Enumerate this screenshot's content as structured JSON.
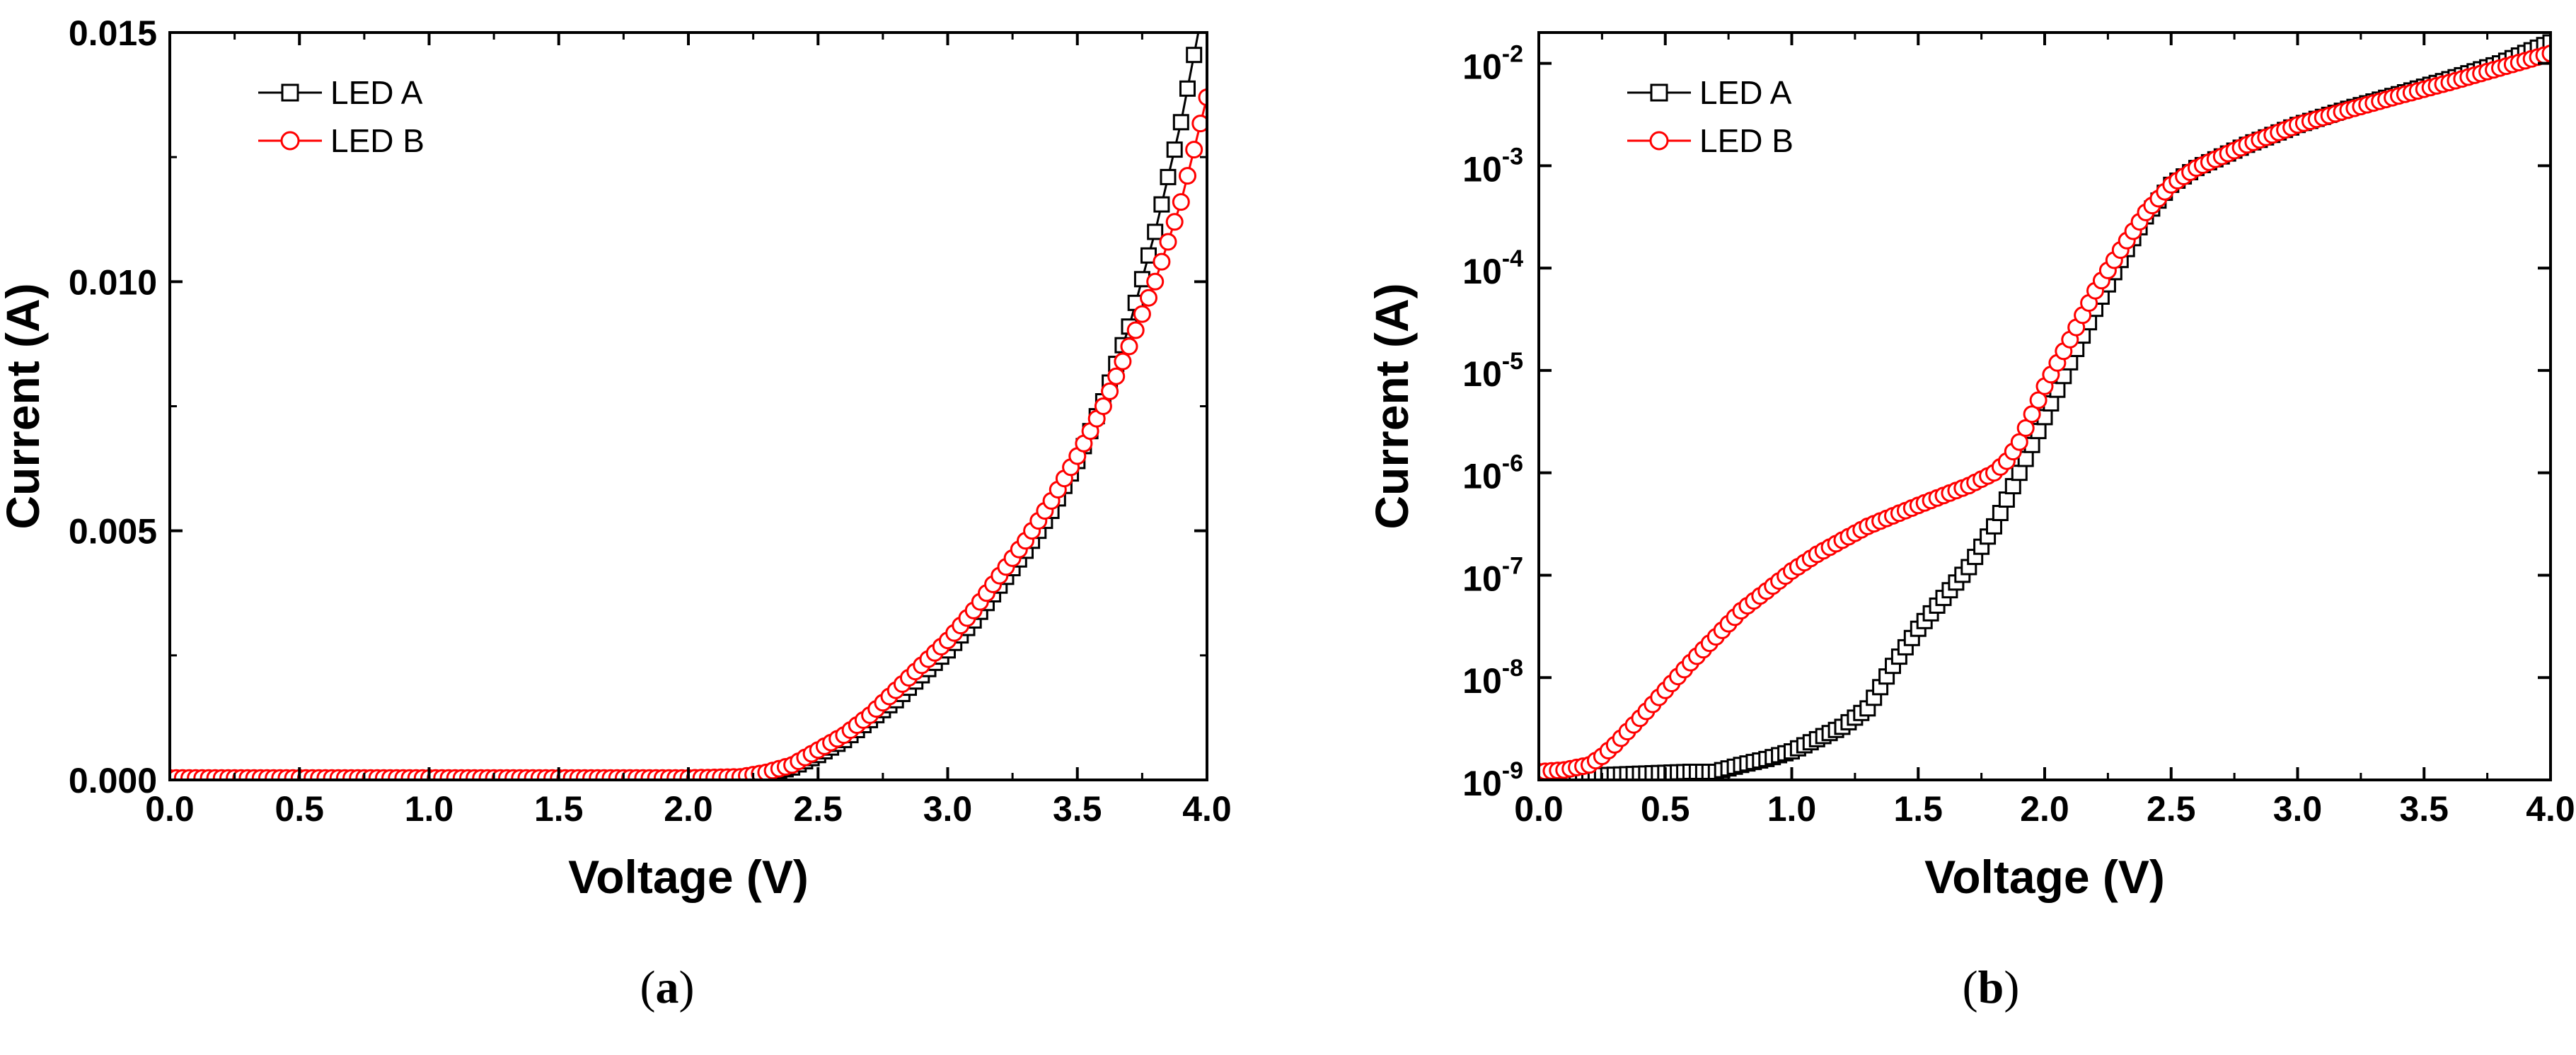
{
  "chart_data": [
    {
      "panel": "a",
      "type": "scatter",
      "xlabel": "Voltage (V)",
      "ylabel": "Current (A)",
      "xlim": [
        0,
        4
      ],
      "ylim": [
        0,
        0.015
      ],
      "yscale": "linear",
      "x_ticks": [
        "0.0",
        "0.5",
        "1.0",
        "1.5",
        "2.0",
        "2.5",
        "3.0",
        "3.5",
        "4.0"
      ],
      "y_ticks": [
        "0.000",
        "0.005",
        "0.010",
        "0.015"
      ],
      "legend_position": "top-left",
      "grid": false,
      "series": [
        {
          "name": "LED A",
          "marker": "square",
          "color": "#000000",
          "x": [
            0,
            0.5,
            1.0,
            1.5,
            2.0,
            2.2,
            2.3,
            2.4,
            2.5,
            2.6,
            2.7,
            2.8,
            2.9,
            3.0,
            3.1,
            3.2,
            3.3,
            3.4,
            3.5,
            3.6,
            3.7,
            3.8,
            3.9,
            4.0
          ],
          "y": [
            4e-05,
            4e-05,
            4e-05,
            4e-05,
            4e-05,
            5e-05,
            0.0001,
            0.00025,
            0.0005,
            0.0008,
            0.0012,
            0.0016,
            0.0021,
            0.0026,
            0.0032,
            0.0039,
            0.0046,
            0.0054,
            0.0064,
            0.0076,
            0.0091,
            0.011,
            0.0132,
            0.0159
          ]
        },
        {
          "name": "LED B",
          "marker": "circle",
          "color": "#ff0000",
          "x": [
            0,
            0.5,
            1.0,
            1.5,
            2.0,
            2.2,
            2.3,
            2.4,
            2.5,
            2.6,
            2.7,
            2.8,
            2.9,
            3.0,
            3.1,
            3.2,
            3.3,
            3.4,
            3.5,
            3.6,
            3.7,
            3.8,
            3.9,
            4.0
          ],
          "y": [
            4e-05,
            4e-05,
            4e-05,
            4e-05,
            4e-05,
            6e-05,
            0.00015,
            0.0003,
            0.0006,
            0.0009,
            0.0013,
            0.0018,
            0.0023,
            0.0028,
            0.0034,
            0.0041,
            0.0048,
            0.0056,
            0.0065,
            0.0075,
            0.0087,
            0.01,
            0.0116,
            0.0137
          ]
        }
      ]
    },
    {
      "panel": "b",
      "type": "scatter",
      "xlabel": "Voltage (V)",
      "ylabel": "Current (A)",
      "xlim": [
        0,
        4
      ],
      "ylim": [
        1e-09,
        0.02
      ],
      "yscale": "log",
      "x_ticks": [
        "0.0",
        "0.5",
        "1.0",
        "1.5",
        "2.0",
        "2.5",
        "3.0",
        "3.5",
        "4.0"
      ],
      "y_ticks": [
        {
          "base": "10",
          "exp": "-9"
        },
        {
          "base": "10",
          "exp": "-8"
        },
        {
          "base": "10",
          "exp": "-7"
        },
        {
          "base": "10",
          "exp": "-6"
        },
        {
          "base": "10",
          "exp": "-5"
        },
        {
          "base": "10",
          "exp": "-4"
        },
        {
          "base": "10",
          "exp": "-3"
        },
        {
          "base": "10",
          "exp": "-2"
        }
      ],
      "legend_position": "top-left",
      "grid": false,
      "series": [
        {
          "name": "LED A",
          "marker": "square",
          "color": "#000000",
          "x": [
            0,
            0.2,
            0.4,
            0.6,
            0.7,
            0.8,
            0.9,
            1.0,
            1.1,
            1.2,
            1.3,
            1.4,
            1.5,
            1.6,
            1.7,
            1.8,
            1.9,
            2.0,
            2.1,
            2.2,
            2.3,
            2.4,
            2.5,
            2.6,
            2.8,
            3.0,
            3.2,
            3.4,
            3.6,
            3.8,
            4.0
          ],
          "y": [
            1.1e-09,
            1.1e-09,
            1.15e-09,
            1.2e-09,
            1.2e-09,
            1.4e-09,
            1.6e-09,
            1.9e-09,
            2.5e-09,
            3.3e-09,
            5e-09,
            1.3e-08,
            3e-08,
            6e-08,
            1.2e-07,
            3e-07,
            1e-06,
            3.5e-06,
            1.2e-05,
            4e-05,
            0.00012,
            0.00032,
            0.00065,
            0.00095,
            0.0016,
            0.0025,
            0.0036,
            0.005,
            0.007,
            0.01,
            0.016
          ]
        },
        {
          "name": "LED B",
          "marker": "circle",
          "color": "#ff0000",
          "x": [
            0,
            0.1,
            0.2,
            0.25,
            0.3,
            0.4,
            0.5,
            0.6,
            0.7,
            0.8,
            0.9,
            1.0,
            1.1,
            1.2,
            1.3,
            1.4,
            1.5,
            1.6,
            1.7,
            1.8,
            1.85,
            1.9,
            2.0,
            2.1,
            2.2,
            2.3,
            2.4,
            2.5,
            2.6,
            2.8,
            3.0,
            3.2,
            3.4,
            3.6,
            3.8,
            4.0
          ],
          "y": [
            1.2e-09,
            1.25e-09,
            1.4e-09,
            1.7e-09,
            2.2e-09,
            4e-09,
            7.5e-09,
            1.4e-08,
            2.5e-08,
            4.5e-08,
            7e-08,
            1.1e-07,
            1.6e-07,
            2.2e-07,
            3e-07,
            3.8e-07,
            4.8e-07,
            6e-07,
            7.5e-07,
            1e-06,
            1.3e-06,
            2e-06,
            7e-06,
            2e-05,
            6e-05,
            0.00015,
            0.00035,
            0.00065,
            0.00095,
            0.0016,
            0.0025,
            0.0035,
            0.0048,
            0.0065,
            0.009,
            0.0125
          ]
        }
      ]
    }
  ],
  "panel_labels": [
    "a",
    "b"
  ]
}
